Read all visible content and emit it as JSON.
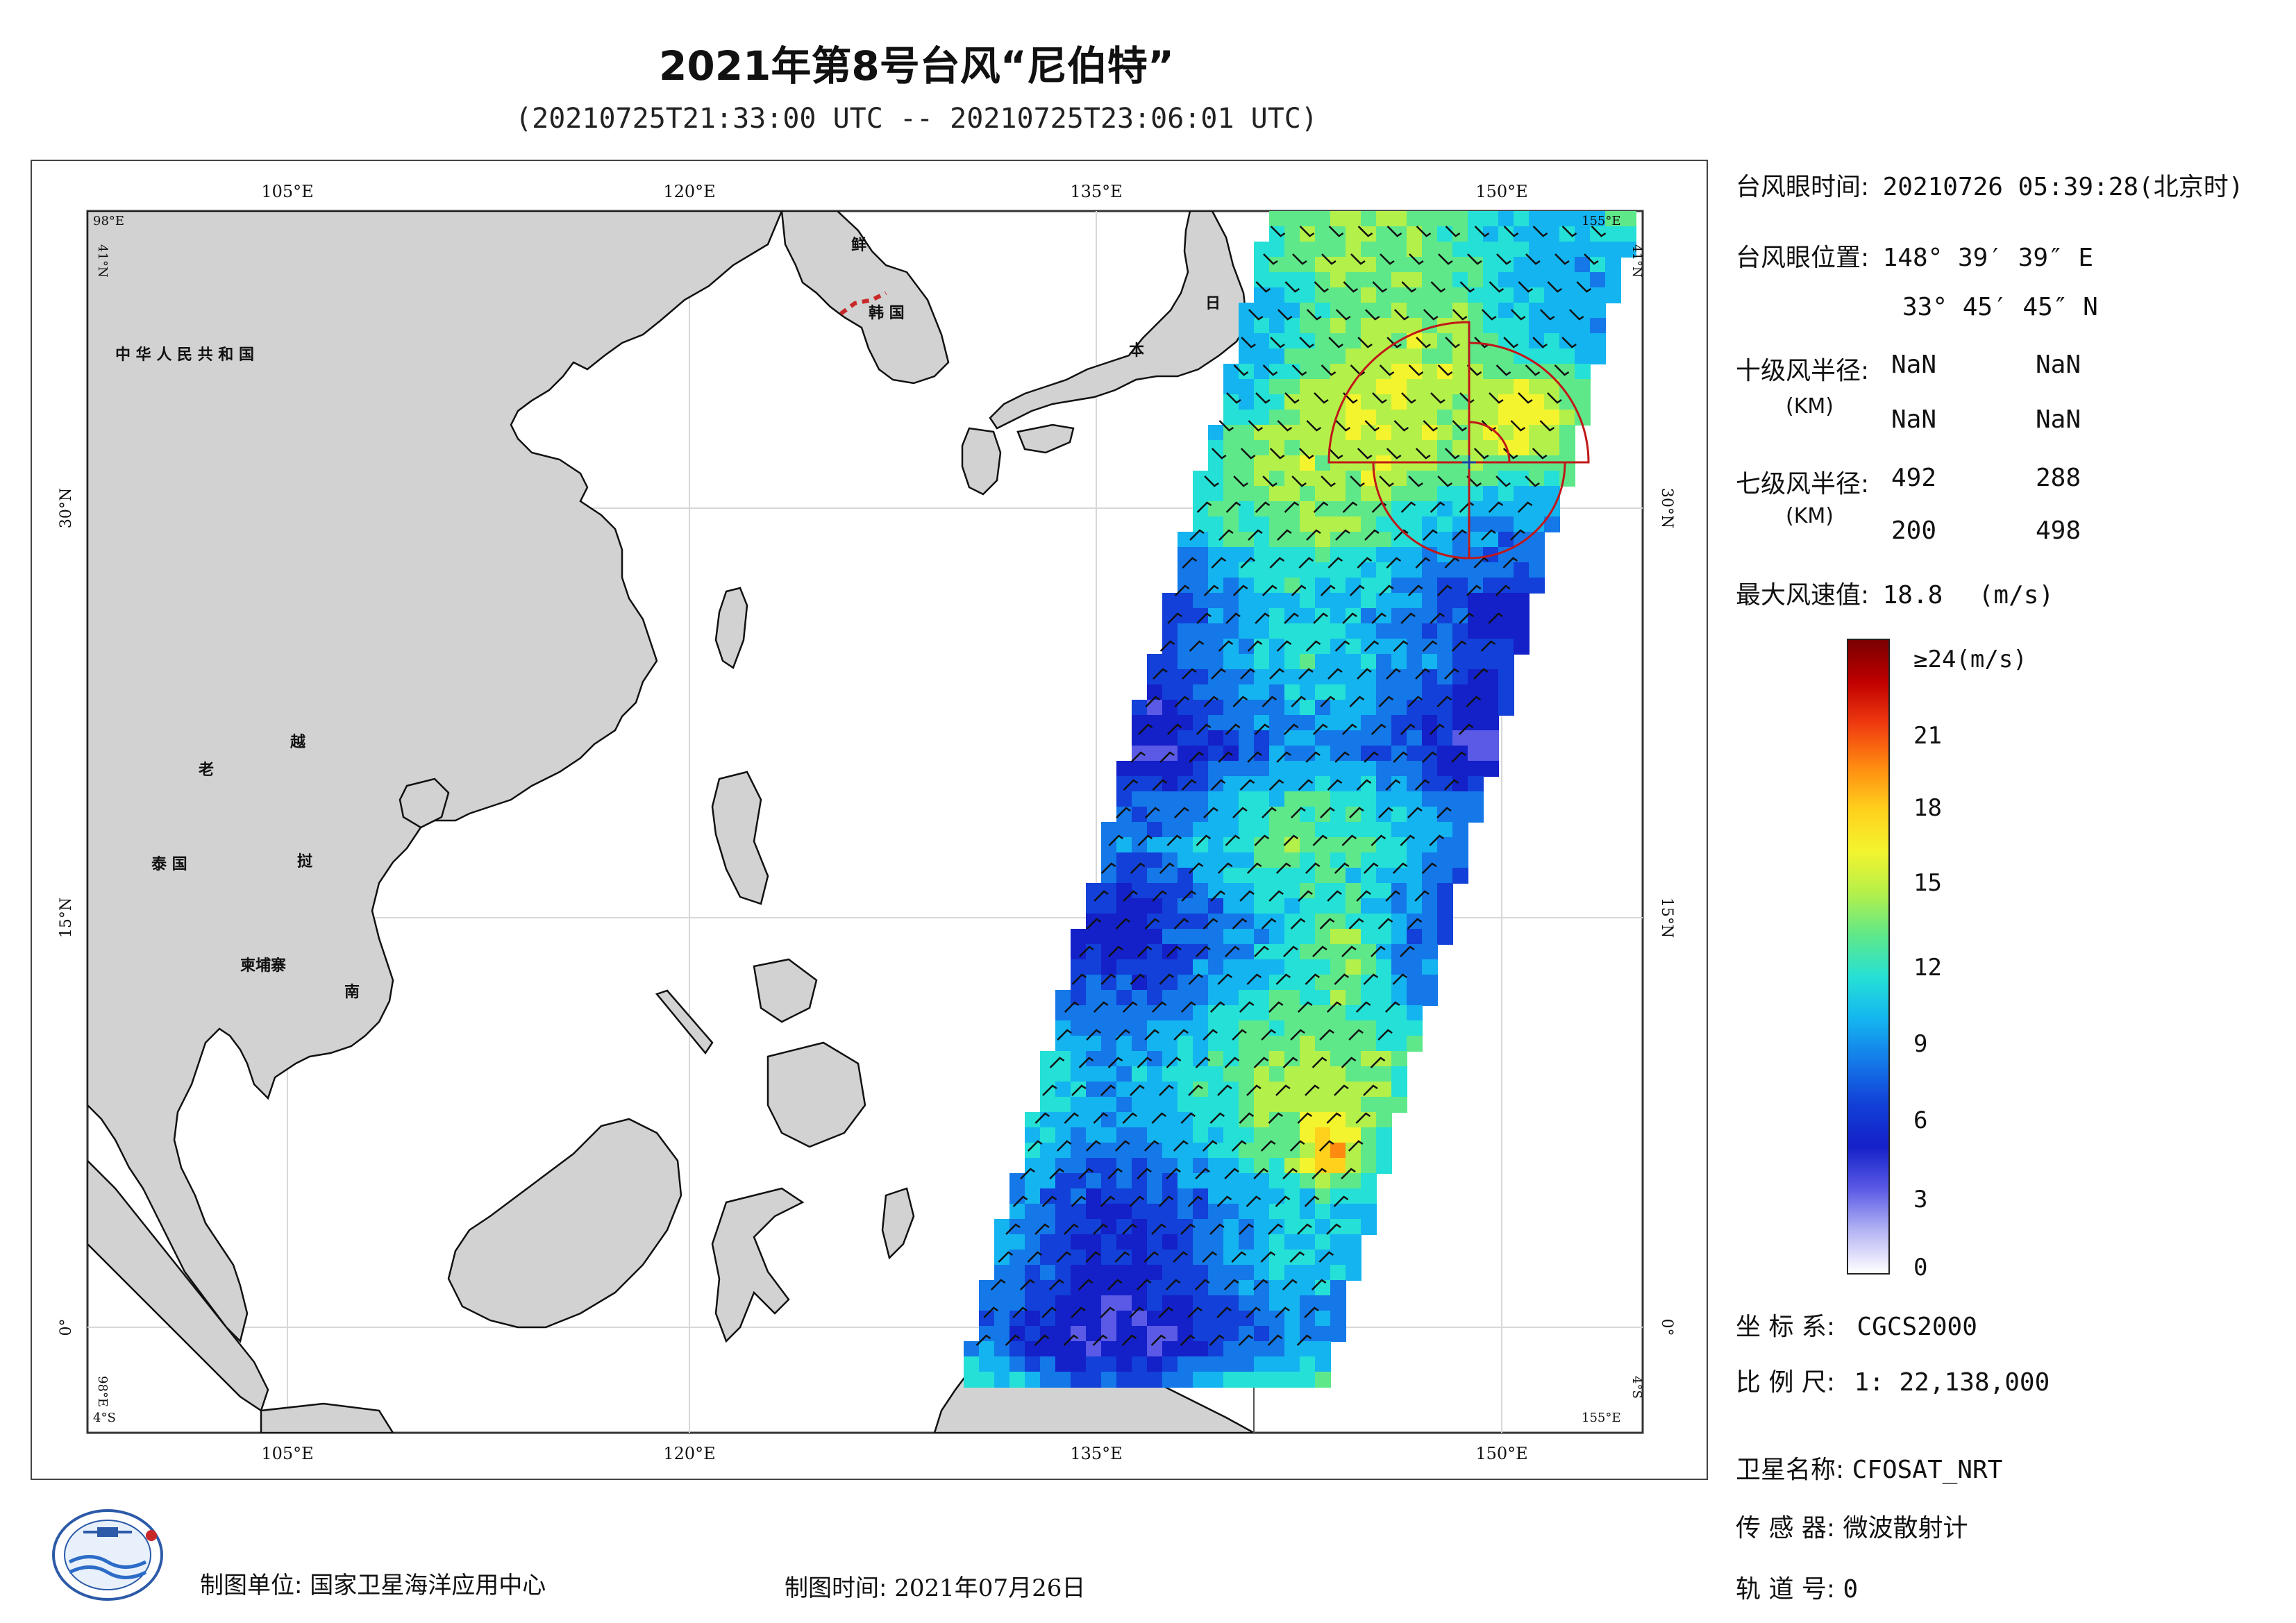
{
  "header": {
    "title": "2021年第8号台风“尼伯特”",
    "subtitle": "(20210725T21:33:00 UTC -- 20210725T23:06:01 UTC)"
  },
  "map": {
    "lon_top_labels": [
      "105°E",
      "120°E",
      "135°E",
      "150°E"
    ],
    "lon_bottom_labels": [
      "105°E",
      "120°E",
      "135°E",
      "150°E"
    ],
    "lat_labels": [
      "30°N",
      "15°N",
      "0°"
    ],
    "corner_tl_lon": "98°E",
    "corner_tl_lat": "41°N",
    "corner_tr_lon": "155°E",
    "corner_tr_lat": "41°N",
    "corner_bl_lon": "4°S",
    "corner_bl_lat": "98°E",
    "corner_br_lon": "155°E",
    "corner_br_lat": "4°S",
    "country_labels": [
      "中 华 人 民 共 和 国",
      "鲜",
      "韩 国",
      "日",
      "本",
      "老",
      "越",
      "泰 国",
      "挝",
      "柬埔寨",
      "南"
    ]
  },
  "info": {
    "eye_time_label": "台风眼时间:",
    "eye_time_value": "20210726 05:39:28(北京时)",
    "eye_pos_label": "台风眼位置:",
    "eye_lon": "148° 39′ 39″ E",
    "eye_lat": "33° 45′ 45″ N",
    "r10_label": "十级风半径:",
    "r10_unit": "(KM)",
    "r10_values": [
      "NaN",
      "NaN",
      "NaN",
      "NaN"
    ],
    "r7_label": "七级风半径:",
    "r7_unit": "(KM)",
    "r7_values": [
      "492",
      "288",
      "200",
      "498"
    ],
    "max_wind_label": "最大风速值:",
    "max_wind_value": "18.8",
    "max_wind_unit": "(m/s)"
  },
  "colorbar": {
    "top_label": "≥24(m/s)",
    "ticks": [
      "21",
      "18",
      "15",
      "12",
      "9",
      "6",
      "3",
      "0"
    ],
    "colors": [
      "#7a0000",
      "#c00000",
      "#f03c10",
      "#ff8a10",
      "#ffd01c",
      "#f4f42e",
      "#b4f04a",
      "#5ee88a",
      "#25e0d6",
      "#14b4f0",
      "#1478e8",
      "#1240d8",
      "#1420c8",
      "#5a5ae6",
      "#b4b4f4",
      "#ffffff"
    ]
  },
  "meta": {
    "crs_label": "坐 标 系:",
    "crs_value": "CGCS2000",
    "scale_label": "比 例 尺:",
    "scale_value": "1: 22,138,000",
    "sat_label": "卫星名称:",
    "sat_value": "CFOSAT_NRT",
    "sensor_label": "传 感 器:",
    "sensor_value": "微波散射计",
    "orbit_label": "轨 道 号:",
    "orbit_value": "0"
  },
  "footer": {
    "unit_label": "制图单位:",
    "unit_value": "国家卫星海洋应用中心",
    "time_label": "制图时间:",
    "time_value": "2021年07月26日"
  }
}
